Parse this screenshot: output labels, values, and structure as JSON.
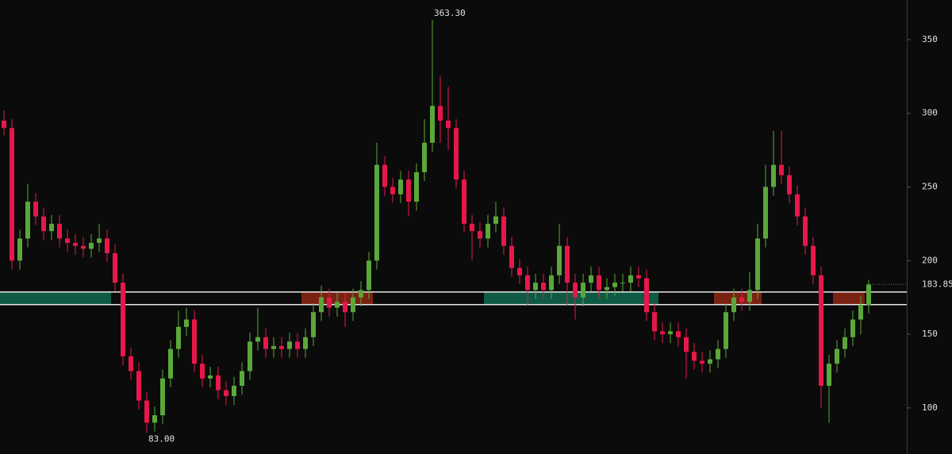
{
  "chart_data": {
    "type": "candlestick",
    "up_color": "#5aa83a",
    "down_color": "#e8174a",
    "ylim": [
      68.7,
      376.9
    ],
    "yticks": [
      100,
      150,
      200,
      250,
      300,
      350
    ],
    "open": [
      295,
      290,
      200,
      215,
      240,
      230,
      220,
      225,
      215,
      212,
      210,
      208,
      212,
      215,
      205,
      185,
      135,
      125,
      105,
      90,
      95,
      120,
      140,
      155,
      160,
      130,
      120,
      122,
      112,
      108,
      115,
      125,
      145,
      148,
      140,
      142,
      140,
      145,
      140,
      148,
      165,
      175,
      168,
      172,
      165,
      175,
      180,
      200,
      265,
      250,
      245,
      255,
      240,
      260,
      280,
      305,
      295,
      290,
      255,
      225,
      220,
      215,
      225,
      230,
      210,
      195,
      190,
      180,
      185,
      180,
      190,
      210,
      185,
      175,
      185,
      190,
      180,
      182,
      185,
      185,
      190,
      188,
      165,
      152,
      150,
      152,
      148,
      138,
      132,
      130,
      133,
      140,
      165,
      175,
      172,
      180,
      215,
      250,
      265,
      258,
      245,
      230,
      210,
      190,
      115,
      130,
      140,
      148,
      160,
      170
    ],
    "high": [
      302,
      296,
      221,
      252,
      246,
      236,
      231,
      231,
      221,
      218,
      216,
      218,
      225,
      221,
      211,
      191,
      141,
      131,
      111,
      101,
      126,
      146,
      166,
      168,
      166,
      136,
      128,
      128,
      118,
      121,
      131,
      151,
      168,
      154,
      148,
      148,
      151,
      151,
      154,
      171,
      183,
      181,
      178,
      178,
      181,
      186,
      206,
      280,
      271,
      256,
      261,
      261,
      266,
      296,
      363.3,
      325,
      318,
      296,
      261,
      231,
      226,
      231,
      240,
      236,
      216,
      201,
      196,
      191,
      191,
      196,
      225,
      216,
      191,
      191,
      196,
      196,
      188,
      191,
      191,
      196,
      196,
      194,
      171,
      158,
      158,
      158,
      154,
      144,
      138,
      139,
      146,
      171,
      181,
      181,
      192,
      225,
      265,
      288,
      288,
      264,
      251,
      236,
      216,
      196,
      136,
      146,
      154,
      166,
      176,
      187
    ],
    "low": [
      285,
      194,
      194,
      209,
      224,
      214,
      214,
      209,
      206,
      204,
      202,
      202,
      206,
      199,
      179,
      129,
      119,
      99,
      83,
      84,
      89,
      114,
      134,
      149,
      124,
      114,
      114,
      106,
      102,
      102,
      109,
      119,
      139,
      134,
      134,
      134,
      134,
      134,
      134,
      142,
      159,
      162,
      162,
      155,
      159,
      169,
      174,
      194,
      244,
      239,
      239,
      230,
      234,
      254,
      274,
      280,
      275,
      249,
      219,
      200,
      209,
      209,
      219,
      204,
      189,
      184,
      170,
      174,
      174,
      174,
      184,
      170,
      160,
      169,
      179,
      174,
      174,
      176,
      179,
      179,
      182,
      159,
      146,
      144,
      144,
      142,
      120,
      126,
      124,
      124,
      127,
      134,
      159,
      166,
      166,
      174,
      209,
      244,
      252,
      239,
      224,
      204,
      184,
      100,
      90,
      124,
      134,
      142,
      150,
      164
    ],
    "close": [
      290,
      200,
      215,
      240,
      230,
      220,
      225,
      215,
      212,
      210,
      208,
      212,
      215,
      205,
      185,
      135,
      125,
      105,
      90,
      95,
      120,
      140,
      155,
      160,
      130,
      120,
      122,
      112,
      108,
      115,
      125,
      145,
      148,
      140,
      142,
      140,
      145,
      140,
      148,
      165,
      175,
      168,
      172,
      165,
      175,
      180,
      200,
      265,
      250,
      245,
      255,
      240,
      260,
      280,
      305,
      295,
      290,
      255,
      225,
      220,
      215,
      225,
      230,
      210,
      195,
      190,
      180,
      185,
      180,
      190,
      210,
      185,
      175,
      185,
      190,
      180,
      182,
      185,
      185,
      190,
      188,
      165,
      152,
      150,
      152,
      148,
      138,
      132,
      130,
      133,
      140,
      165,
      175,
      172,
      180,
      215,
      250,
      265,
      258,
      245,
      230,
      210,
      190,
      115,
      130,
      140,
      148,
      160,
      170,
      183.85
    ],
    "levels": [
      178.7,
      170.1
    ],
    "zones": [
      {
        "start": 0,
        "end": 13,
        "color": "#0f5a45"
      },
      {
        "start": 38,
        "end": 46,
        "color": "#7a2212"
      },
      {
        "start": 61,
        "end": 82,
        "color": "#0f5a45"
      },
      {
        "start": 90,
        "end": 95,
        "color": "#7a2212"
      },
      {
        "start": 105,
        "end": 108,
        "color": "#7a2212"
      }
    ],
    "annotations": [
      {
        "text": "363.30",
        "value": 363.3,
        "candle": 54,
        "side": "top"
      },
      {
        "text": "83.00",
        "value": 83,
        "candle": 18,
        "side": "bottom"
      }
    ],
    "last_price": {
      "text": "183.85",
      "value": 183.85
    }
  }
}
